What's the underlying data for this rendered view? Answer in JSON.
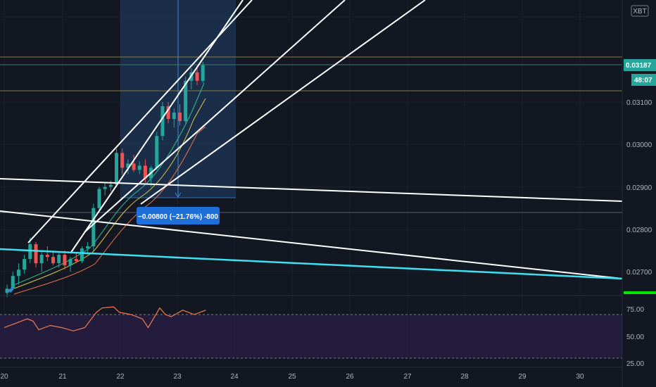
{
  "symbol_badge": "XBT",
  "colors": {
    "background": "#131722",
    "up": "#26a69a",
    "down": "#ef5350",
    "trendline": "#ffffff",
    "cyan_line": "#3ee0f0",
    "rsi_line": "#f57c4a",
    "rsi_band": "#2a1f47",
    "measure_box": "#1e3a5f",
    "measure_label_bg": "#1e6fd9",
    "price_tag_bg": "#26a69a",
    "green_marker": "#00e600",
    "level_line": "#8a7a3a"
  },
  "measure_label": "−0.00800 (−21.76%) -800",
  "last_price_tag": "0.03187",
  "countdown_tag": "48:07",
  "chart_data": [
    {
      "type": "candlestick",
      "title": "",
      "x_ticks": [
        "20",
        "21",
        "22",
        "23",
        "24",
        "25",
        "26",
        "27",
        "28",
        "29",
        "30"
      ],
      "y_ticks": [
        "0.03100",
        "0.03000",
        "0.02900",
        "0.02800",
        "0.02700"
      ],
      "y_range": [
        0.0264,
        0.0325
      ],
      "x_range": [
        20.0,
        30.8
      ],
      "grid": true,
      "candles": [
        {
          "t": 20.05,
          "o": 0.0265,
          "h": 0.0267,
          "l": 0.0264,
          "c": 0.0266
        },
        {
          "t": 20.15,
          "o": 0.0266,
          "h": 0.027,
          "l": 0.02655,
          "c": 0.0269
        },
        {
          "t": 20.25,
          "o": 0.0269,
          "h": 0.0272,
          "l": 0.0267,
          "c": 0.02705
        },
        {
          "t": 20.35,
          "o": 0.02705,
          "h": 0.0274,
          "l": 0.02695,
          "c": 0.0273
        },
        {
          "t": 20.45,
          "o": 0.0273,
          "h": 0.0278,
          "l": 0.0272,
          "c": 0.02765
        },
        {
          "t": 20.55,
          "o": 0.02765,
          "h": 0.0277,
          "l": 0.0271,
          "c": 0.0272
        },
        {
          "t": 20.65,
          "o": 0.0272,
          "h": 0.0275,
          "l": 0.027,
          "c": 0.0274
        },
        {
          "t": 20.75,
          "o": 0.0274,
          "h": 0.0276,
          "l": 0.02725,
          "c": 0.02735
        },
        {
          "t": 20.85,
          "o": 0.02735,
          "h": 0.0275,
          "l": 0.02715,
          "c": 0.0272
        },
        {
          "t": 20.95,
          "o": 0.0272,
          "h": 0.02745,
          "l": 0.0271,
          "c": 0.0274
        },
        {
          "t": 21.05,
          "o": 0.0274,
          "h": 0.0275,
          "l": 0.02705,
          "c": 0.02715
        },
        {
          "t": 21.15,
          "o": 0.02715,
          "h": 0.02735,
          "l": 0.027,
          "c": 0.0273
        },
        {
          "t": 21.25,
          "o": 0.0273,
          "h": 0.02745,
          "l": 0.0272,
          "c": 0.02725
        },
        {
          "t": 21.35,
          "o": 0.02725,
          "h": 0.0276,
          "l": 0.0272,
          "c": 0.02755
        },
        {
          "t": 21.45,
          "o": 0.02755,
          "h": 0.0277,
          "l": 0.0274,
          "c": 0.0276
        },
        {
          "t": 21.55,
          "o": 0.0276,
          "h": 0.0286,
          "l": 0.0275,
          "c": 0.0285
        },
        {
          "t": 21.65,
          "o": 0.0285,
          "h": 0.029,
          "l": 0.0284,
          "c": 0.02895
        },
        {
          "t": 21.75,
          "o": 0.02895,
          "h": 0.0291,
          "l": 0.0288,
          "c": 0.029
        },
        {
          "t": 21.85,
          "o": 0.029,
          "h": 0.02915,
          "l": 0.0289,
          "c": 0.02905
        },
        {
          "t": 21.95,
          "o": 0.02905,
          "h": 0.0299,
          "l": 0.029,
          "c": 0.0298
        },
        {
          "t": 22.05,
          "o": 0.0298,
          "h": 0.0299,
          "l": 0.0293,
          "c": 0.02945
        },
        {
          "t": 22.15,
          "o": 0.02945,
          "h": 0.02965,
          "l": 0.0293,
          "c": 0.02955
        },
        {
          "t": 22.25,
          "o": 0.02955,
          "h": 0.02975,
          "l": 0.02935,
          "c": 0.0294
        },
        {
          "t": 22.35,
          "o": 0.0294,
          "h": 0.0296,
          "l": 0.0293,
          "c": 0.0295
        },
        {
          "t": 22.45,
          "o": 0.0295,
          "h": 0.02965,
          "l": 0.0291,
          "c": 0.0292
        },
        {
          "t": 22.55,
          "o": 0.0292,
          "h": 0.0295,
          "l": 0.029,
          "c": 0.02945
        },
        {
          "t": 22.65,
          "o": 0.02945,
          "h": 0.0303,
          "l": 0.0294,
          "c": 0.0302
        },
        {
          "t": 22.75,
          "o": 0.0302,
          "h": 0.031,
          "l": 0.0301,
          "c": 0.0309
        },
        {
          "t": 22.85,
          "o": 0.0309,
          "h": 0.031,
          "l": 0.0305,
          "c": 0.0306
        },
        {
          "t": 22.95,
          "o": 0.0306,
          "h": 0.03085,
          "l": 0.0304,
          "c": 0.03075
        },
        {
          "t": 23.05,
          "o": 0.03075,
          "h": 0.03095,
          "l": 0.03045,
          "c": 0.03055
        },
        {
          "t": 23.15,
          "o": 0.03055,
          "h": 0.0316,
          "l": 0.0305,
          "c": 0.0315
        },
        {
          "t": 23.25,
          "o": 0.0315,
          "h": 0.0318,
          "l": 0.0313,
          "c": 0.0317
        },
        {
          "t": 23.35,
          "o": 0.0317,
          "h": 0.03185,
          "l": 0.0314,
          "c": 0.0315
        },
        {
          "t": 23.45,
          "o": 0.0315,
          "h": 0.03195,
          "l": 0.03145,
          "c": 0.03187
        }
      ],
      "rsi": {
        "y_ticks": [
          "75.00",
          "50.00",
          "25.00"
        ],
        "overbought": 70,
        "oversold": 30,
        "x": [
          20.0,
          20.2,
          20.4,
          20.5,
          20.6,
          20.8,
          21.0,
          21.2,
          21.4,
          21.6,
          21.7,
          21.9,
          22.0,
          22.2,
          22.4,
          22.5,
          22.7,
          22.8,
          22.9,
          23.1,
          23.3,
          23.5
        ],
        "values": [
          58,
          62,
          66,
          64,
          56,
          60,
          58,
          55,
          58,
          72,
          76,
          77,
          72,
          70,
          66,
          58,
          76,
          70,
          68,
          74,
          70,
          74
        ]
      }
    }
  ]
}
